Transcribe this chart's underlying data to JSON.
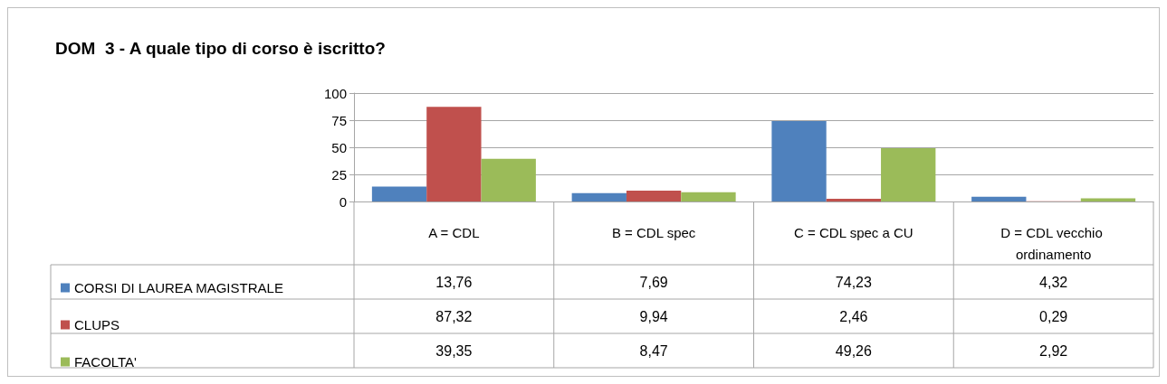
{
  "chart_data": {
    "type": "bar",
    "title": "DOM  3 - A quale tipo di corso è iscritto?",
    "categories": [
      "A = CDL",
      "B = CDL spec",
      "C = CDL spec a CU",
      "D = CDL vecchio ordinamento"
    ],
    "series": [
      {
        "name": "CORSI DI LAUREA MAGISTRALE",
        "color": "#4f81bd",
        "values": [
          13.76,
          7.69,
          74.23,
          4.32
        ],
        "value_labels": [
          "13,76",
          "7,69",
          "74,23",
          "4,32"
        ]
      },
      {
        "name": "CLUPS",
        "color": "#c0504d",
        "values": [
          87.32,
          9.94,
          2.46,
          0.29
        ],
        "value_labels": [
          "87,32",
          "9,94",
          "2,46",
          "0,29"
        ]
      },
      {
        "name": "FACOLTA'",
        "color": "#9bbb59",
        "values": [
          39.35,
          8.47,
          49.26,
          2.92
        ],
        "value_labels": [
          "39,35",
          "8,47",
          "49,26",
          "2,92"
        ]
      }
    ],
    "ylim": [
      0,
      100
    ],
    "yticks": [
      0,
      25,
      50,
      75,
      100
    ],
    "grid": "y",
    "legend": "bottom left"
  }
}
